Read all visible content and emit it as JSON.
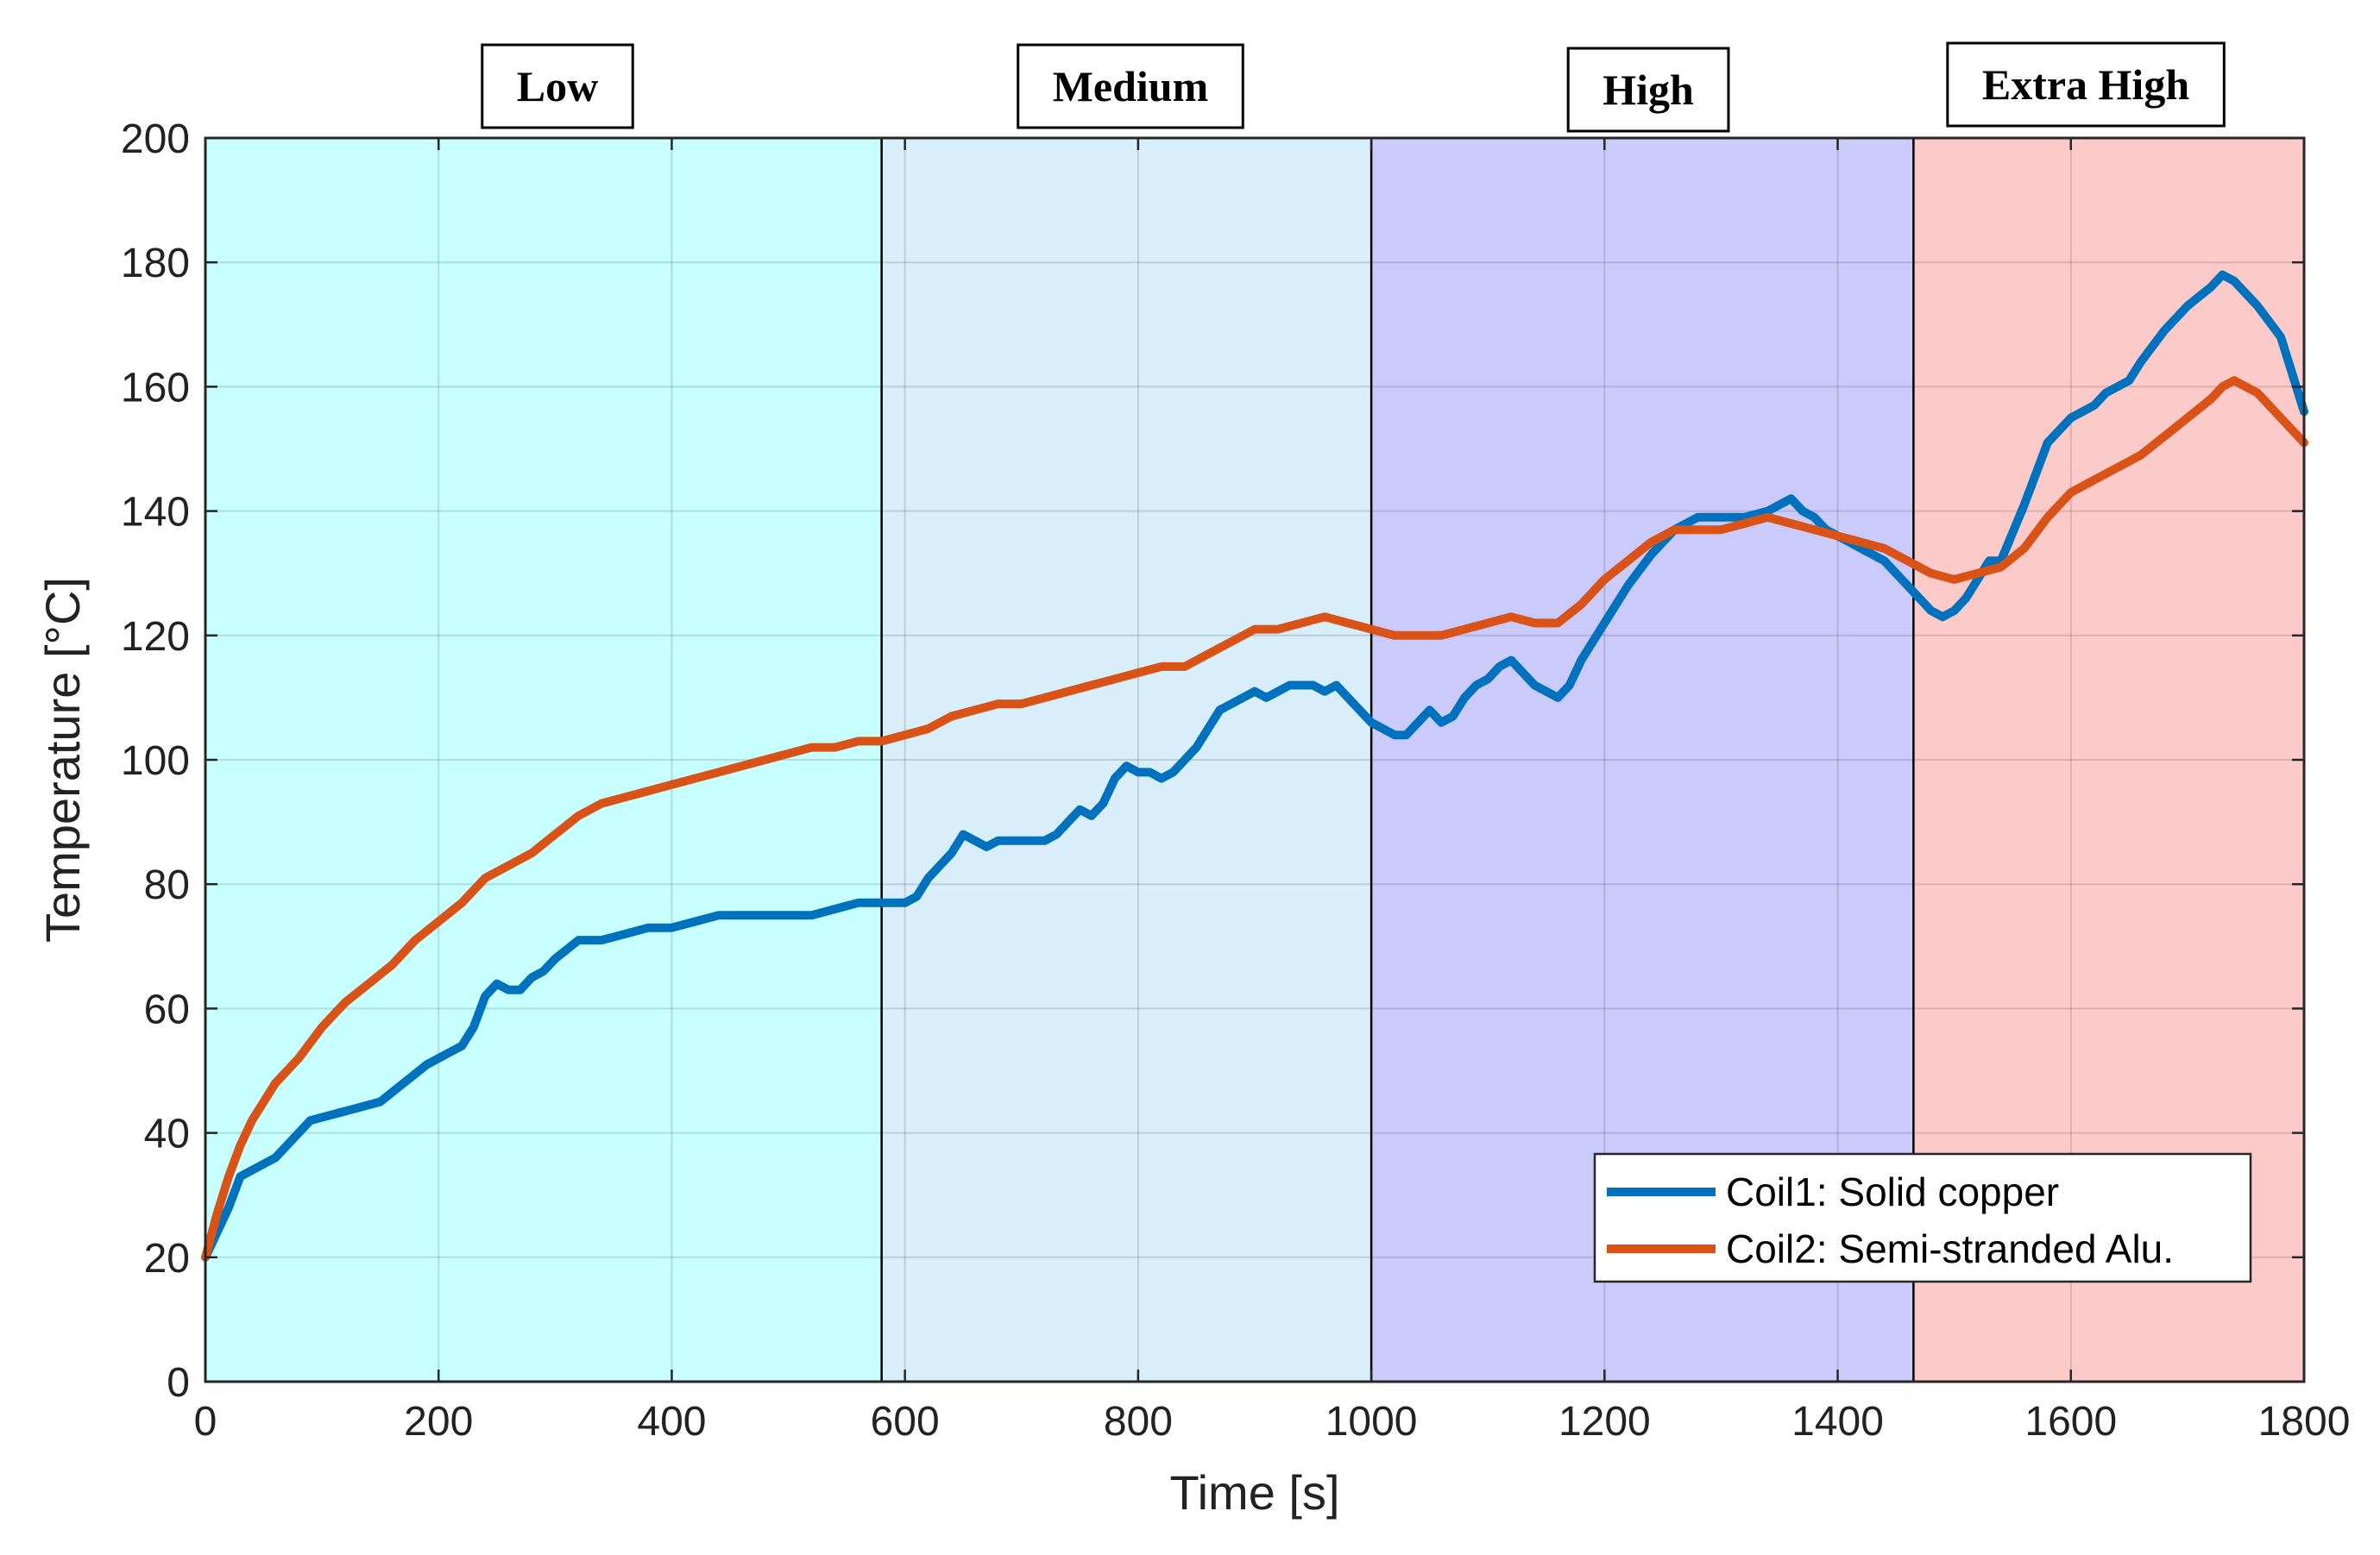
{
  "chart_data": {
    "type": "line",
    "title": "",
    "xlabel": "Time [s]",
    "ylabel": "Temperature [°C]",
    "xlim": [
      0,
      1800
    ],
    "ylim": [
      0,
      200
    ],
    "xticks": [
      0,
      200,
      400,
      600,
      800,
      1000,
      1200,
      1400,
      1600,
      1800
    ],
    "yticks": [
      0,
      20,
      40,
      60,
      80,
      100,
      120,
      140,
      160,
      180,
      200
    ],
    "grid": true,
    "legend_position": "bottom-right",
    "regions": [
      {
        "label": "Low",
        "x_start": 0,
        "x_end": 580,
        "color": "#c8ffff"
      },
      {
        "label": "Medium",
        "x_start": 580,
        "x_end": 1000,
        "color": "#d8eefa"
      },
      {
        "label": "High",
        "x_start": 1000,
        "x_end": 1465,
        "color": "#cbcbfb"
      },
      {
        "label": "Extra High",
        "x_start": 1465,
        "x_end": 1800,
        "color": "#fdcaca"
      }
    ],
    "series": [
      {
        "name": "Coil1: Solid copper",
        "color": "#0072bd",
        "x": [
          0,
          10,
          20,
          30,
          40,
          60,
          70,
          90,
          110,
          130,
          150,
          170,
          190,
          210,
          220,
          230,
          240,
          250,
          260,
          270,
          280,
          290,
          300,
          320,
          340,
          360,
          380,
          400,
          420,
          440,
          460,
          500,
          520,
          540,
          560,
          580,
          600,
          610,
          620,
          630,
          640,
          650,
          660,
          670,
          680,
          690,
          700,
          710,
          720,
          730,
          740,
          750,
          760,
          770,
          780,
          790,
          800,
          810,
          820,
          830,
          840,
          850,
          860,
          870,
          880,
          890,
          900,
          910,
          920,
          930,
          940,
          950,
          960,
          970,
          980,
          990,
          1000,
          1010,
          1020,
          1030,
          1040,
          1050,
          1060,
          1070,
          1080,
          1090,
          1100,
          1110,
          1120,
          1130,
          1140,
          1150,
          1160,
          1170,
          1180,
          1200,
          1220,
          1240,
          1260,
          1280,
          1300,
          1320,
          1340,
          1350,
          1360,
          1370,
          1380,
          1390,
          1400,
          1410,
          1420,
          1430,
          1440,
          1450,
          1460,
          1470,
          1480,
          1490,
          1500,
          1510,
          1520,
          1530,
          1540,
          1560,
          1580,
          1600,
          1620,
          1630,
          1640,
          1650,
          1660,
          1680,
          1700,
          1720,
          1730,
          1740,
          1760,
          1780,
          1800
        ],
        "y": [
          20,
          24,
          28,
          33,
          34,
          36,
          38,
          42,
          43,
          44,
          45,
          48,
          51,
          53,
          54,
          57,
          62,
          64,
          63,
          63,
          65,
          66,
          68,
          71,
          71,
          72,
          73,
          73,
          74,
          75,
          75,
          75,
          75,
          76,
          77,
          77,
          77,
          78,
          81,
          83,
          85,
          88,
          87,
          86,
          87,
          87,
          87,
          87,
          87,
          88,
          90,
          92,
          91,
          93,
          97,
          99,
          98,
          98,
          97,
          98,
          100,
          102,
          105,
          108,
          109,
          110,
          111,
          110,
          111,
          112,
          112,
          112,
          111,
          112,
          110,
          108,
          106,
          105,
          104,
          104,
          106,
          108,
          106,
          107,
          110,
          112,
          113,
          115,
          116,
          114,
          112,
          111,
          110,
          112,
          116,
          122,
          128,
          133,
          137,
          139,
          139,
          139,
          140,
          141,
          142,
          140,
          139,
          137,
          136,
          135,
          134,
          133,
          132,
          130,
          128,
          126,
          124,
          123,
          124,
          126,
          129,
          132,
          132,
          141,
          151,
          155,
          157,
          159,
          160,
          161,
          164,
          169,
          173,
          176,
          178,
          177,
          173,
          168,
          156
        ]
      },
      {
        "name": "Coil2: Semi-stranded Alu.",
        "color": "#d95319",
        "x": [
          0,
          10,
          20,
          30,
          40,
          50,
          60,
          80,
          100,
          120,
          140,
          160,
          180,
          200,
          220,
          240,
          260,
          280,
          300,
          320,
          340,
          360,
          380,
          400,
          420,
          440,
          460,
          480,
          500,
          520,
          540,
          560,
          580,
          600,
          620,
          640,
          660,
          680,
          700,
          720,
          740,
          760,
          780,
          800,
          820,
          840,
          860,
          880,
          900,
          920,
          940,
          960,
          980,
          1000,
          1020,
          1040,
          1060,
          1080,
          1100,
          1120,
          1140,
          1160,
          1180,
          1200,
          1220,
          1240,
          1260,
          1280,
          1300,
          1320,
          1340,
          1360,
          1380,
          1400,
          1420,
          1440,
          1460,
          1480,
          1500,
          1520,
          1540,
          1560,
          1580,
          1600,
          1620,
          1640,
          1660,
          1680,
          1700,
          1720,
          1730,
          1740,
          1760,
          1780,
          1800
        ],
        "y": [
          20,
          27,
          33,
          38,
          42,
          45,
          48,
          52,
          57,
          61,
          64,
          67,
          71,
          74,
          77,
          81,
          83,
          85,
          88,
          91,
          93,
          94,
          95,
          96,
          97,
          98,
          99,
          100,
          101,
          102,
          102,
          103,
          103,
          104,
          105,
          107,
          108,
          109,
          109,
          110,
          111,
          112,
          113,
          114,
          115,
          115,
          117,
          119,
          121,
          121,
          122,
          123,
          122,
          121,
          120,
          120,
          120,
          121,
          122,
          123,
          122,
          122,
          125,
          129,
          132,
          135,
          137,
          137,
          137,
          138,
          139,
          138,
          137,
          136,
          135,
          134,
          132,
          130,
          129,
          130,
          131,
          134,
          139,
          143,
          145,
          147,
          149,
          152,
          155,
          158,
          160,
          161,
          159,
          155,
          151
        ]
      }
    ]
  }
}
